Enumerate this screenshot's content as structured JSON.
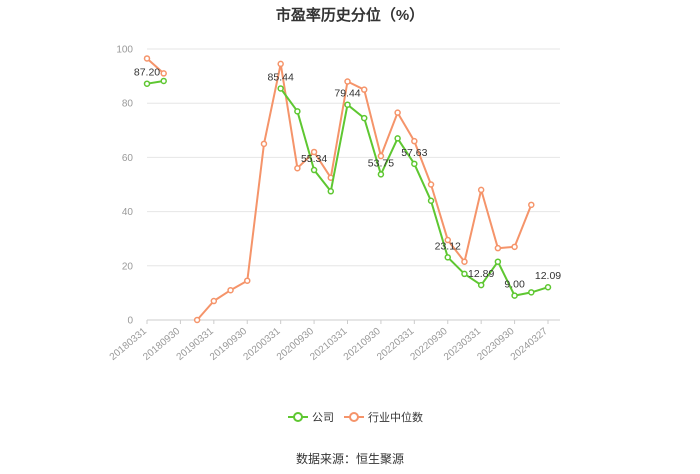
{
  "chart_data": {
    "type": "line",
    "title": "市盈率历史分位（%）",
    "source": "数据来源：恒生聚源",
    "xlabel": "",
    "ylabel": "",
    "ylim": [
      0,
      100
    ],
    "yticks": [
      0,
      20,
      40,
      60,
      80,
      100
    ],
    "grid": true,
    "legend_position": "bottom",
    "x": [
      "20180331",
      "20180630",
      "20180930",
      "20181231",
      "20190331",
      "20190630",
      "20190930",
      "20191231",
      "20200331",
      "20200630",
      "20200930",
      "20201231",
      "20210331",
      "20210630",
      "20210930",
      "20211231",
      "20220331",
      "20220630",
      "20220930",
      "20221231",
      "20230331",
      "20230630",
      "20230930",
      "20231231",
      "20240327"
    ],
    "xtick_labels": [
      "20180331",
      "20180930",
      "20190331",
      "20190930",
      "20200331",
      "20200930",
      "20210331",
      "20210930",
      "20220331",
      "20220930",
      "20230331",
      "20230930",
      "20240327"
    ],
    "series": [
      {
        "name": "公司",
        "color": "#5ec731",
        "values": [
          87.2,
          88.2,
          null,
          null,
          null,
          null,
          null,
          null,
          85.44,
          77.0,
          55.34,
          47.5,
          79.44,
          74.5,
          53.75,
          67.0,
          57.63,
          44.0,
          23.12,
          17.0,
          12.89,
          21.5,
          9.0,
          10.2,
          12.09
        ]
      },
      {
        "name": "行业中位数",
        "color": "#f5946a",
        "values": [
          96.5,
          91.0,
          null,
          0,
          7.0,
          11.0,
          14.5,
          65.0,
          94.5,
          56.0,
          62.0,
          52.5,
          88.0,
          85.0,
          60.5,
          76.5,
          66.0,
          50.0,
          29.5,
          21.5,
          48.0,
          26.5,
          27.0,
          42.5,
          null
        ]
      }
    ],
    "data_labels": [
      {
        "series": 0,
        "index": 0,
        "text": "87.20"
      },
      {
        "series": 0,
        "index": 8,
        "text": "85.44"
      },
      {
        "series": 0,
        "index": 10,
        "text": "55.34"
      },
      {
        "series": 0,
        "index": 12,
        "text": "79.44"
      },
      {
        "series": 0,
        "index": 14,
        "text": "53.75"
      },
      {
        "series": 0,
        "index": 16,
        "text": "57.63"
      },
      {
        "series": 0,
        "index": 18,
        "text": "23.12"
      },
      {
        "series": 0,
        "index": 20,
        "text": "12.89"
      },
      {
        "series": 0,
        "index": 22,
        "text": "9.00"
      },
      {
        "series": 0,
        "index": 24,
        "text": "12.09"
      }
    ]
  }
}
